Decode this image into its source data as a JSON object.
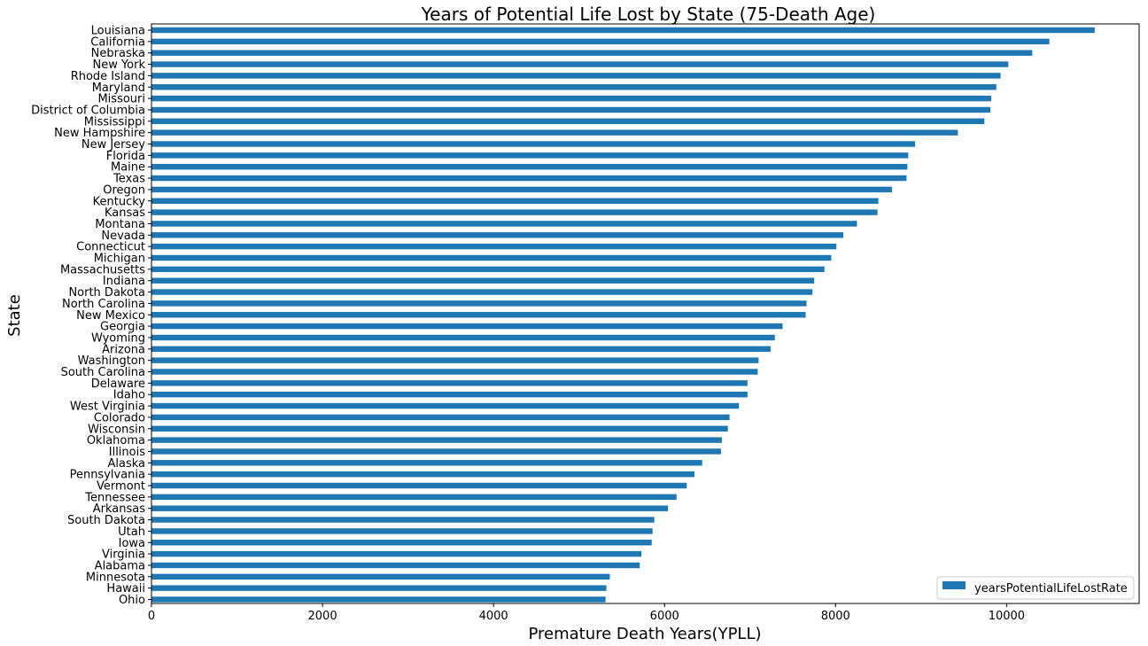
{
  "colors": {
    "bar": "#1f77b4"
  },
  "chart_data": {
    "type": "bar",
    "orientation": "horizontal",
    "title": "Years of Potential Life Lost by State (75-Death Age)",
    "xlabel": "Premature Death Years(YPLL)",
    "ylabel": "State",
    "xlim": [
      0,
      11550
    ],
    "xticks": [
      0,
      2000,
      4000,
      6000,
      8000,
      10000
    ],
    "grid": false,
    "legend": {
      "position": "lower-right",
      "entries": [
        "yearsPotentialLifeLostRate"
      ]
    },
    "series": [
      {
        "name": "yearsPotentialLifeLostRate"
      }
    ],
    "categories": [
      "Louisiana",
      "California",
      "Nebraska",
      "New York",
      "Rhode Island",
      "Maryland",
      "Missouri",
      "District of Columbia",
      "Mississippi",
      "New Hampshire",
      "New Jersey",
      "Florida",
      "Maine",
      "Texas",
      "Oregon",
      "Kentucky",
      "Kansas",
      "Montana",
      "Nevada",
      "Connecticut",
      "Michigan",
      "Massachusetts",
      "Indiana",
      "North Dakota",
      "North Carolina",
      "New Mexico",
      "Georgia",
      "Wyoming",
      "Arizona",
      "Washington",
      "South Carolina",
      "Delaware",
      "Idaho",
      "West Virginia",
      "Colorado",
      "Wisconsin",
      "Oklahoma",
      "Illinois",
      "Alaska",
      "Pennsylvania",
      "Vermont",
      "Tennessee",
      "Arkansas",
      "South Dakota",
      "Utah",
      "Iowa",
      "Virginia",
      "Alabama",
      "Minnesota",
      "Hawaii",
      "Ohio"
    ],
    "values": [
      11030,
      10500,
      10300,
      10020,
      9930,
      9880,
      9820,
      9810,
      9740,
      9430,
      8930,
      8850,
      8840,
      8830,
      8660,
      8500,
      8490,
      8250,
      8090,
      8010,
      7950,
      7870,
      7750,
      7730,
      7660,
      7650,
      7380,
      7290,
      7240,
      7100,
      7090,
      6970,
      6970,
      6870,
      6760,
      6740,
      6670,
      6660,
      6440,
      6350,
      6260,
      6140,
      6040,
      5880,
      5860,
      5850,
      5730,
      5710,
      5360,
      5320,
      5310
    ]
  }
}
